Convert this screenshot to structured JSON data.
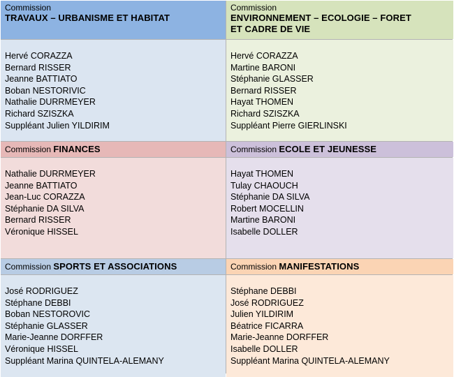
{
  "commissions": [
    {
      "prefix": "Commission",
      "title": "TRAVAUX – URBANISME ET HABITAT",
      "members": [
        "Hervé CORAZZA",
        "Bernard RISSER",
        "Jeanne BATTIATO",
        "Boban NESTORIVIC",
        "Nathalie DURRMEYER",
        "Richard SZISZKA",
        "Suppléant Julien YILDIRIM"
      ]
    },
    {
      "prefix": "Commission",
      "title_line1": "ENVIRONNEMENT – ECOLOGIE – FORET",
      "title_line2": "ET CADRE DE VIE",
      "members": [
        "Hervé CORAZZA",
        "Martine BARONI",
        "Stéphanie GLASSER",
        "Bernard RISSER",
        "Hayat THOMEN",
        "Richard SZISZKA",
        "Suppléant Pierre GIERLINSKI"
      ]
    },
    {
      "prefix": "Commission",
      "title": "FINANCES",
      "members": [
        "Nathalie DURRMEYER",
        "Jeanne BATTIATO",
        "Jean-Luc CORAZZA",
        "Stéphanie DA SILVA",
        "Bernard RISSER",
        "Véronique HISSEL"
      ]
    },
    {
      "prefix": "Commission",
      "title": "ECOLE ET JEUNESSE",
      "members": [
        "Hayat THOMEN",
        "Tulay CHAOUCH",
        "Stéphanie DA SILVA",
        "Robert MOCELLIN",
        "Martine BARONI",
        "Isabelle DOLLER"
      ]
    },
    {
      "prefix": "Commission",
      "title": "SPORTS ET ASSOCIATIONS",
      "members": [
        "José RODRIGUEZ",
        "Stéphane DEBBI",
        "Boban NESTOROVIC",
        "Stéphanie GLASSER",
        "Marie-Jeanne DORFFER",
        "Véronique HISSEL",
        "Suppléant Marina QUINTELA-ALEMANY"
      ]
    },
    {
      "prefix": "Commission",
      "title": "MANIFESTATIONS",
      "members": [
        "Stéphane DEBBI",
        "José RODRIGUEZ",
        "Julien YILDIRIM",
        "Béatrice FICARRA",
        "Marie-Jeanne DORFFER",
        "Isabelle DOLLER",
        "Suppléant Marina QUINTELA-ALEMANY"
      ]
    }
  ],
  "colors": {
    "travaux_header": "#8db3e2",
    "environnement_header": "#d6e3bc",
    "finances_header": "#e6b8b7",
    "ecole_header": "#ccc0da",
    "sports_header": "#b8cce4",
    "manifestations_header": "#fbd4b4"
  }
}
